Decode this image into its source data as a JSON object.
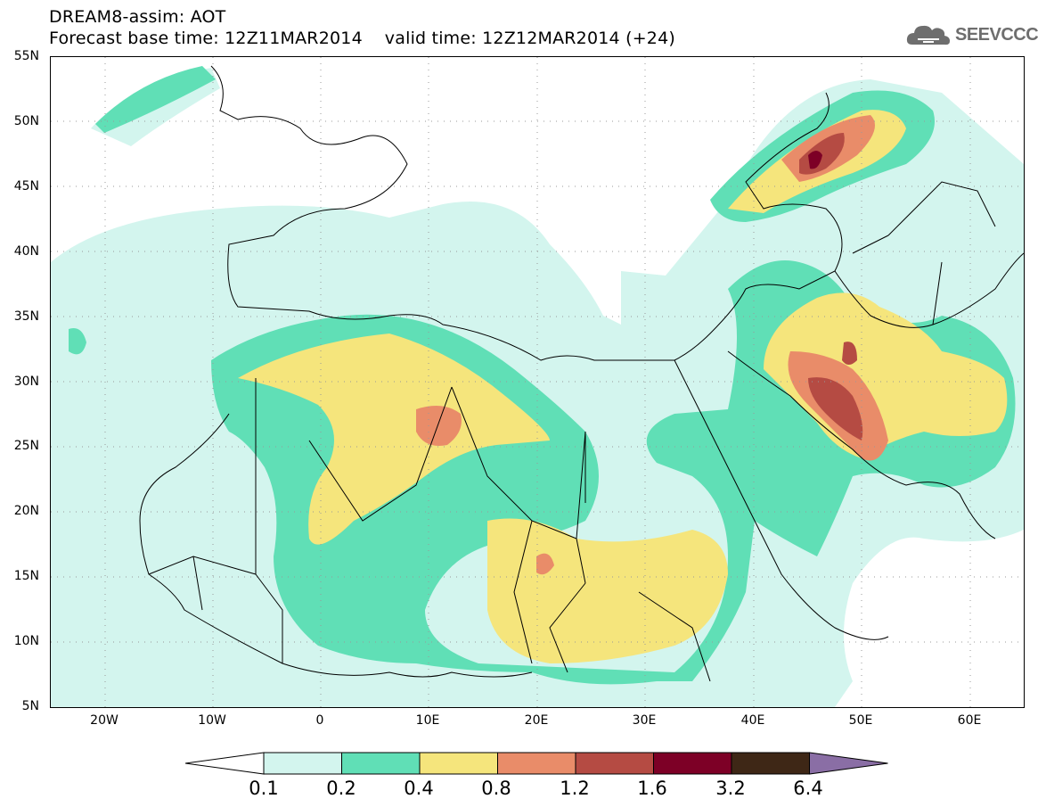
{
  "header": {
    "line1": "DREAM8-assim: AOT",
    "line2": "Forecast base time: 12Z11MAR2014    valid time: 12Z12MAR2014 (+24)"
  },
  "logo": {
    "text": "SEEVCCC",
    "icon": "cloud-icon"
  },
  "map": {
    "lat_labels": [
      "55N",
      "50N",
      "45N",
      "40N",
      "35N",
      "30N",
      "25N",
      "20N",
      "15N",
      "10N",
      "5N"
    ],
    "lon_labels": [
      "20W",
      "10W",
      "0",
      "10E",
      "20E",
      "30E",
      "40E",
      "50E",
      "60E"
    ],
    "lon_range": [
      -25,
      65
    ],
    "lat_range": [
      5,
      55
    ]
  },
  "legend": {
    "labels": [
      "0.1",
      "0.2",
      "0.4",
      "0.8",
      "1.2",
      "1.6",
      "3.2",
      "6.4"
    ],
    "colors": [
      "#ffffff",
      "#d3f5ee",
      "#60dfb6",
      "#f5e57c",
      "#e98c69",
      "#b54b43",
      "#7d0026",
      "#3e2716",
      "#8a6ea5"
    ]
  }
}
